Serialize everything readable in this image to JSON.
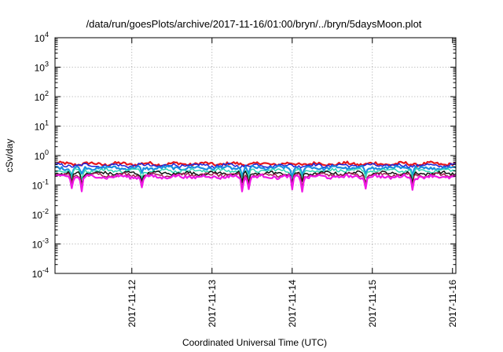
{
  "chart_data": {
    "type": "line",
    "title": "/data/run/goesPlots/archive/2017-11-16/01:00/bryn/../bryn/5daysMoon.plot",
    "xlabel": "Coordinated Universal Time (UTC)",
    "ylabel": "cSv/day",
    "yscale": "log",
    "ylim": [
      0.0001,
      10000
    ],
    "y_ticks": [
      {
        "base": "10",
        "exp": "-4",
        "value": 0.0001
      },
      {
        "base": "10",
        "exp": "-3",
        "value": 0.001
      },
      {
        "base": "10",
        "exp": "-2",
        "value": 0.01
      },
      {
        "base": "10",
        "exp": "-1",
        "value": 0.1
      },
      {
        "base": "10",
        "exp": "0",
        "value": 1
      },
      {
        "base": "10",
        "exp": "1",
        "value": 10
      },
      {
        "base": "10",
        "exp": "2",
        "value": 100
      },
      {
        "base": "10",
        "exp": "3",
        "value": 1000
      },
      {
        "base": "10",
        "exp": "4",
        "value": 10000
      }
    ],
    "xlim": [
      "2017-11-11 01:00",
      "2017-11-16 01:00"
    ],
    "x_ticks": [
      "2017-11-12",
      "2017-11-13",
      "2017-11-14",
      "2017-11-15",
      "2017-11-16"
    ],
    "grid": true,
    "legend": "none",
    "series": [
      {
        "color": "#e6161c",
        "level": 0.52
      },
      {
        "color": "#1e26d8",
        "level": 0.46
      },
      {
        "color": "#1a8fe0",
        "level": 0.38
      },
      {
        "color": "#2fd6b4",
        "level": 0.31
      },
      {
        "color": "#111111",
        "level": 0.25
      },
      {
        "color": "#a0204f",
        "level": 0.22
      },
      {
        "color": "#f018e6",
        "level": 0.19
      }
    ],
    "dips": [
      {
        "x": "2017-11-11 06:00",
        "depth": 0.55
      },
      {
        "x": "2017-11-11 09:00",
        "depth": 0.6
      },
      {
        "x": "2017-11-12 03:00",
        "depth": 0.5
      },
      {
        "x": "2017-11-13 09:00",
        "depth": 0.65
      },
      {
        "x": "2017-11-13 11:00",
        "depth": 0.55
      },
      {
        "x": "2017-11-14 00:00",
        "depth": 0.6
      },
      {
        "x": "2017-11-14 03:00",
        "depth": 0.6
      },
      {
        "x": "2017-11-14 22:00",
        "depth": 0.5
      },
      {
        "x": "2017-11-15 12:00",
        "depth": 0.6
      }
    ]
  }
}
